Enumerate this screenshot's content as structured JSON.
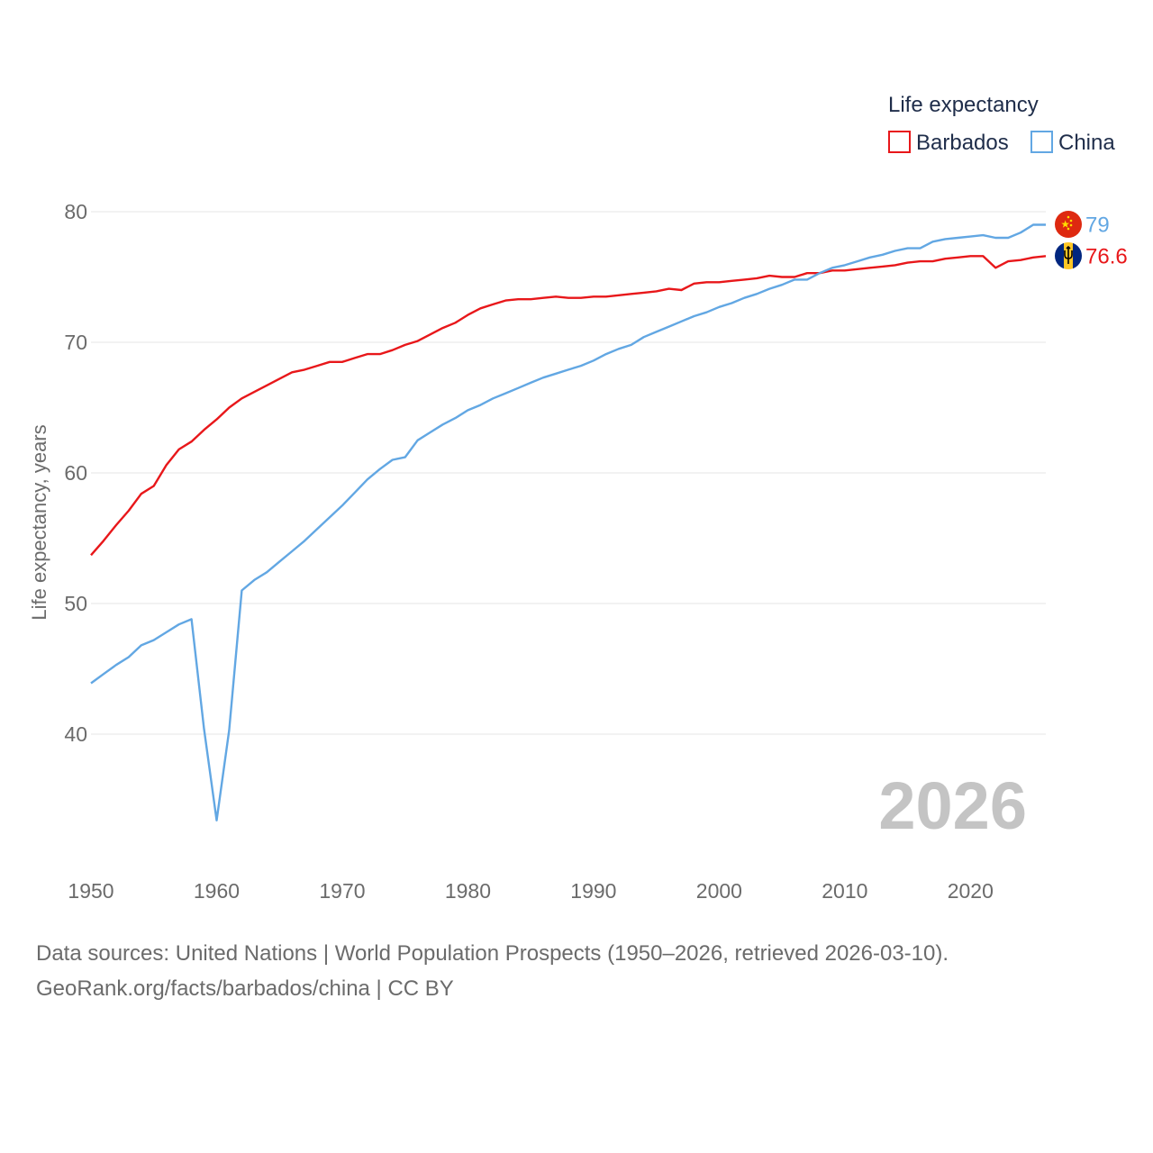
{
  "chart_data": {
    "type": "line",
    "title": "",
    "legend_title": "Life expectancy",
    "legend_position": "top-right",
    "xlabel": "",
    "ylabel": "Life expectancy, years",
    "xlim": [
      1950,
      2026
    ],
    "ylim": [
      31,
      84
    ],
    "grid": true,
    "x_ticks": [
      1950,
      1960,
      1970,
      1980,
      1990,
      2000,
      2010,
      2020
    ],
    "y_ticks": [
      40,
      50,
      60,
      70,
      80
    ],
    "current_year_label": "2026",
    "x": [
      1950,
      1951,
      1952,
      1953,
      1954,
      1955,
      1956,
      1957,
      1958,
      1959,
      1960,
      1961,
      1962,
      1963,
      1964,
      1965,
      1966,
      1967,
      1968,
      1969,
      1970,
      1971,
      1972,
      1973,
      1974,
      1975,
      1976,
      1977,
      1978,
      1979,
      1980,
      1981,
      1982,
      1983,
      1984,
      1985,
      1986,
      1987,
      1988,
      1989,
      1990,
      1991,
      1992,
      1993,
      1994,
      1995,
      1996,
      1997,
      1998,
      1999,
      2000,
      2001,
      2002,
      2003,
      2004,
      2005,
      2006,
      2007,
      2008,
      2009,
      2010,
      2011,
      2012,
      2013,
      2014,
      2015,
      2016,
      2017,
      2018,
      2019,
      2020,
      2021,
      2022,
      2023,
      2024,
      2025,
      2026
    ],
    "series": [
      {
        "name": "Barbados",
        "color": "#e8171a",
        "end_label": "76.6",
        "flag": "barbados-flag",
        "values": [
          53.7,
          54.8,
          56.0,
          57.1,
          58.4,
          59.0,
          60.6,
          61.8,
          62.4,
          63.3,
          64.1,
          65.0,
          65.7,
          66.2,
          66.7,
          67.2,
          67.7,
          67.9,
          68.2,
          68.5,
          68.5,
          68.8,
          69.1,
          69.1,
          69.4,
          69.8,
          70.1,
          70.6,
          71.1,
          71.5,
          72.1,
          72.6,
          72.9,
          73.2,
          73.3,
          73.3,
          73.4,
          73.5,
          73.4,
          73.4,
          73.5,
          73.5,
          73.6,
          73.7,
          73.8,
          73.9,
          74.1,
          74.0,
          74.5,
          74.6,
          74.6,
          74.7,
          74.8,
          74.9,
          75.1,
          75.0,
          75.0,
          75.3,
          75.3,
          75.5,
          75.5,
          75.6,
          75.7,
          75.8,
          75.9,
          76.1,
          76.2,
          76.2,
          76.4,
          76.5,
          76.6,
          76.6,
          75.7,
          76.2,
          76.3,
          76.5,
          76.6
        ]
      },
      {
        "name": "China",
        "color": "#62a7e3",
        "end_label": "79",
        "flag": "china-flag",
        "values": [
          43.9,
          44.6,
          45.3,
          45.9,
          46.8,
          47.2,
          47.8,
          48.4,
          48.8,
          40.4,
          33.4,
          40.3,
          51.0,
          51.8,
          52.4,
          53.2,
          54.0,
          54.8,
          55.7,
          56.6,
          57.5,
          58.5,
          59.5,
          60.3,
          61.0,
          61.2,
          62.5,
          63.1,
          63.7,
          64.2,
          64.8,
          65.2,
          65.7,
          66.1,
          66.5,
          66.9,
          67.3,
          67.6,
          67.9,
          68.2,
          68.6,
          69.1,
          69.5,
          69.8,
          70.4,
          70.8,
          71.2,
          71.6,
          72.0,
          72.3,
          72.7,
          73.0,
          73.4,
          73.7,
          74.1,
          74.4,
          74.8,
          74.8,
          75.3,
          75.7,
          75.9,
          76.2,
          76.5,
          76.7,
          77.0,
          77.2,
          77.2,
          77.7,
          77.9,
          78.0,
          78.1,
          78.2,
          78.0,
          78.0,
          78.4,
          79.0,
          79.0
        ]
      }
    ],
    "source_text": "Data sources: United Nations | World Population Prospects (1950–2026, retrieved 2026-03-10).",
    "credit_text": "GeoRank.org/facts/barbados/china | CC BY"
  }
}
